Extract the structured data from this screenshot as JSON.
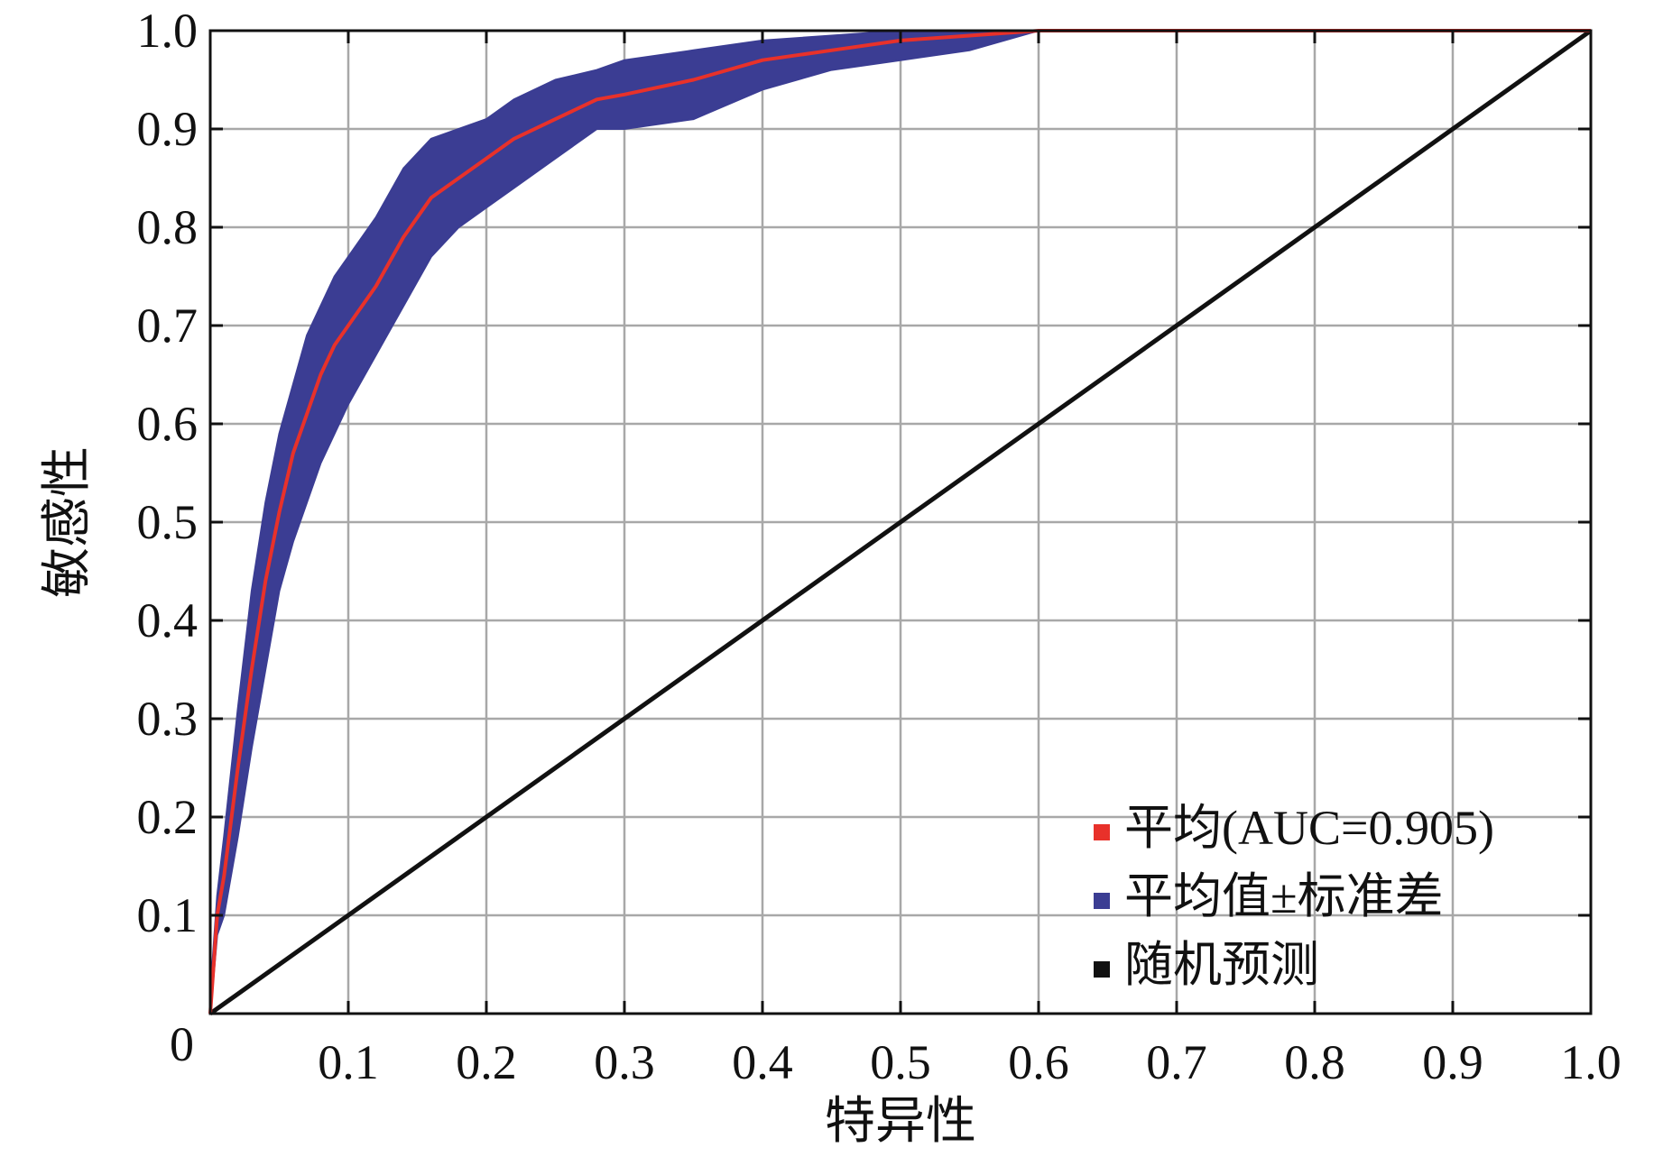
{
  "chart_data": {
    "type": "line",
    "title": "",
    "xlabel": "特异性",
    "ylabel": "敏感性",
    "xlim": [
      0,
      1
    ],
    "ylim": [
      0,
      1
    ],
    "grid": true,
    "legend_position": "bottom-right",
    "origin_label": "0",
    "x_ticks": [
      "0.1",
      "0.2",
      "0.3",
      "0.4",
      "0.5",
      "0.6",
      "0.7",
      "0.8",
      "0.9",
      "1.0"
    ],
    "y_ticks": [
      "0.1",
      "0.2",
      "0.3",
      "0.4",
      "0.5",
      "0.6",
      "0.7",
      "0.8",
      "0.9",
      "1.0"
    ],
    "series": [
      {
        "name": "平均(AUC=0.905)",
        "color": "#e8312a",
        "x": [
          0,
          0.005,
          0.01,
          0.02,
          0.03,
          0.04,
          0.05,
          0.06,
          0.07,
          0.08,
          0.09,
          0.1,
          0.12,
          0.14,
          0.16,
          0.18,
          0.2,
          0.22,
          0.25,
          0.28,
          0.3,
          0.35,
          0.4,
          0.45,
          0.5,
          0.55,
          0.6,
          0.7,
          0.8,
          0.9,
          1.0
        ],
        "y": [
          0,
          0.1,
          0.14,
          0.25,
          0.35,
          0.44,
          0.51,
          0.57,
          0.61,
          0.65,
          0.68,
          0.7,
          0.74,
          0.79,
          0.83,
          0.85,
          0.87,
          0.89,
          0.91,
          0.93,
          0.935,
          0.95,
          0.97,
          0.98,
          0.99,
          0.995,
          1.0,
          1.0,
          1.0,
          1.0,
          1.0
        ]
      },
      {
        "name": "平均值±标准差",
        "color": "#3b3d93",
        "x": [
          0,
          0.005,
          0.01,
          0.02,
          0.03,
          0.04,
          0.05,
          0.06,
          0.07,
          0.08,
          0.09,
          0.1,
          0.12,
          0.14,
          0.16,
          0.18,
          0.2,
          0.22,
          0.25,
          0.28,
          0.3,
          0.35,
          0.4,
          0.45,
          0.5,
          0.55,
          0.6,
          0.7,
          0.8,
          0.9,
          1.0
        ],
        "upper": [
          0.02,
          0.12,
          0.18,
          0.31,
          0.43,
          0.52,
          0.59,
          0.64,
          0.69,
          0.72,
          0.75,
          0.77,
          0.81,
          0.86,
          0.89,
          0.9,
          0.91,
          0.93,
          0.95,
          0.96,
          0.97,
          0.98,
          0.99,
          0.995,
          1.0,
          1.0,
          1.0,
          1.0,
          1.0,
          1.0,
          1.0
        ],
        "lower": [
          0,
          0.08,
          0.1,
          0.18,
          0.27,
          0.35,
          0.43,
          0.48,
          0.52,
          0.56,
          0.59,
          0.62,
          0.67,
          0.72,
          0.77,
          0.8,
          0.82,
          0.84,
          0.87,
          0.9,
          0.9,
          0.91,
          0.94,
          0.96,
          0.97,
          0.98,
          1.0,
          1.0,
          1.0,
          1.0,
          1.0
        ]
      },
      {
        "name": "随机预测",
        "color": "#111111",
        "x": [
          0,
          1
        ],
        "y": [
          0,
          1
        ]
      }
    ]
  }
}
